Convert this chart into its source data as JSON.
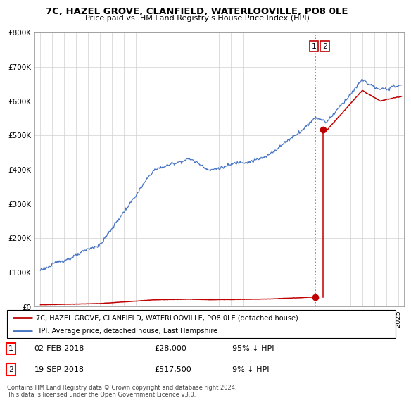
{
  "title": "7C, HAZEL GROVE, CLANFIELD, WATERLOOVILLE, PO8 0LE",
  "subtitle": "Price paid vs. HM Land Registry's House Price Index (HPI)",
  "legend_line1": "7C, HAZEL GROVE, CLANFIELD, WATERLOOVILLE, PO8 0LE (detached house)",
  "legend_line2": "HPI: Average price, detached house, East Hampshire",
  "annotation1_date": "02-FEB-2018",
  "annotation1_price": "£28,000",
  "annotation1_note": "95% ↓ HPI",
  "annotation2_date": "19-SEP-2018",
  "annotation2_price": "£517,500",
  "annotation2_note": "9% ↓ HPI",
  "footer": "Contains HM Land Registry data © Crown copyright and database right 2024.\nThis data is licensed under the Open Government Licence v3.0.",
  "hpi_color": "#4472C4",
  "price_color": "#C00000",
  "point1_x": 2018.085,
  "point1_y": 28000,
  "point2_x": 2018.72,
  "point2_y": 517500,
  "vline_x": 2018.085,
  "ylim_max": 800000,
  "xlim_min": 1994.5,
  "xlim_max": 2025.5,
  "yticks": [
    0,
    100000,
    200000,
    300000,
    400000,
    500000,
    600000,
    700000,
    800000
  ],
  "ytick_labels": [
    "£0",
    "£100K",
    "£200K",
    "£300K",
    "£400K",
    "£500K",
    "£600K",
    "£700K",
    "£800K"
  ]
}
